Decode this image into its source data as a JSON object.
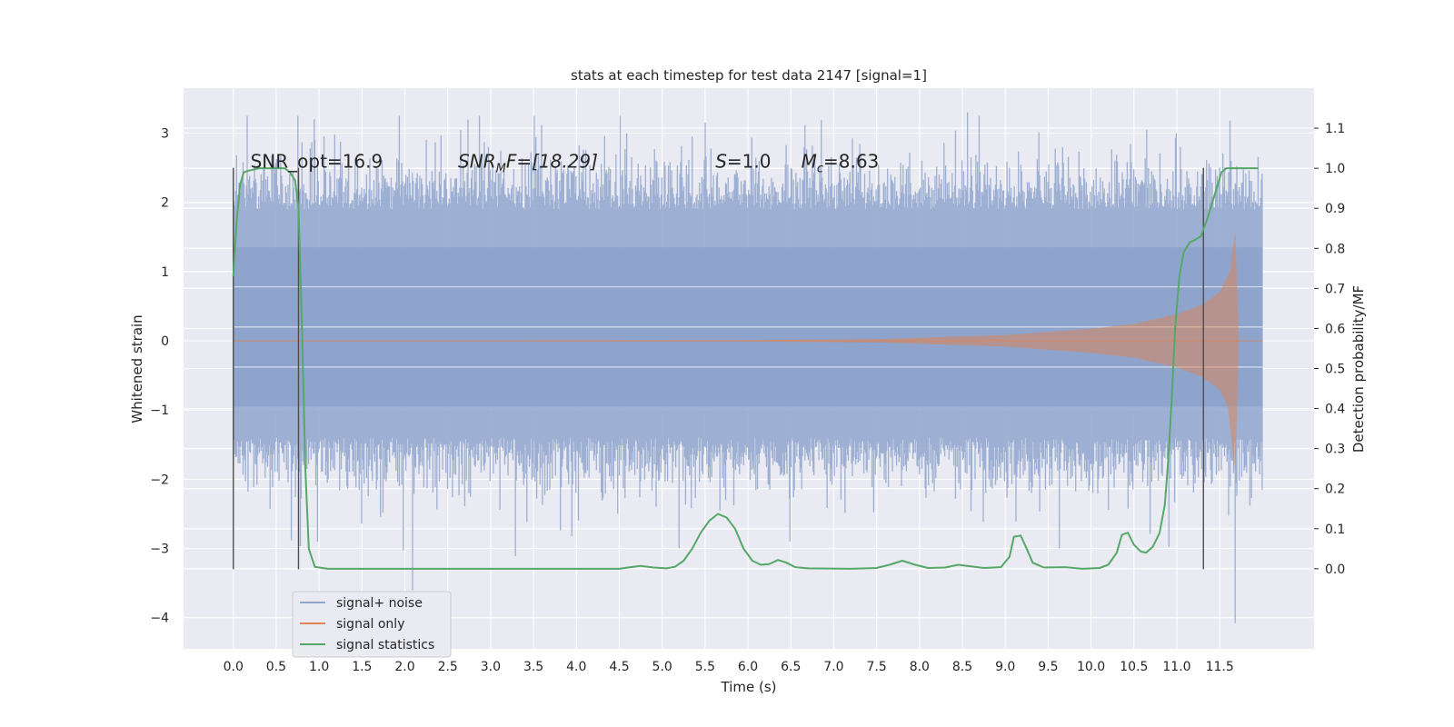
{
  "chart_data": {
    "type": "line",
    "title": "stats at each timestep for test data 2147 [signal=1]",
    "xlabel": "Time (s)",
    "ylabel": "Whitened strain",
    "ylabel_right": "Detection probability/MF",
    "xlim": [
      -0.58,
      12.6
    ],
    "ylim": [
      -4.45,
      3.65
    ],
    "ylim_right": [
      -0.2,
      1.2
    ],
    "x_ticks": [
      0.0,
      0.5,
      1.0,
      1.5,
      2.0,
      2.5,
      3.0,
      3.5,
      4.0,
      4.5,
      5.0,
      5.5,
      6.0,
      6.5,
      7.0,
      7.5,
      8.0,
      8.5,
      9.0,
      9.5,
      10.0,
      10.5,
      11.0,
      11.5
    ],
    "x_tick_labels": [
      "0.0",
      "0.5",
      "1.0",
      "1.5",
      "2.0",
      "2.5",
      "3.0",
      "3.5",
      "4.0",
      "4.5",
      "5.0",
      "5.5",
      "6.0",
      "6.5",
      "7.0",
      "7.5",
      "8.0",
      "8.5",
      "9.0",
      "9.5",
      "10.0",
      "10.5",
      "11.0",
      "11.5"
    ],
    "y_ticks": [
      -4,
      -3,
      -2,
      -1,
      0,
      1,
      2,
      3
    ],
    "y_tick_labels": [
      "−4",
      "−3",
      "−2",
      "−1",
      "0",
      "1",
      "2",
      "3"
    ],
    "y_right_ticks": [
      0.0,
      0.1,
      0.2,
      0.3,
      0.4,
      0.5,
      0.6,
      0.7,
      0.8,
      0.9,
      1.0,
      1.1
    ],
    "y_right_tick_labels": [
      "0.0",
      "0.1",
      "0.2",
      "0.3",
      "0.4",
      "0.5",
      "0.6",
      "0.7",
      "0.8",
      "0.9",
      "1.0",
      "1.1"
    ],
    "grid": true,
    "legend_position": "lower-left",
    "annotations": [
      {
        "id": "snr-opt",
        "text": "SNR_opt=16.9",
        "x": 0.2,
        "y": 2.5
      },
      {
        "id": "snr-mf",
        "text_main": "SNR",
        "text_sub": "M",
        "text_rest": "F=[18.29]",
        "x": 2.62,
        "y": 2.5
      },
      {
        "id": "s-value",
        "text_italic": "S",
        "text_rest": "=1.0",
        "x": 5.62,
        "y": 2.5
      },
      {
        "id": "mc-value",
        "text_italic": "M",
        "text_sub": "c",
        "text_rest": "=8.63",
        "x": 6.62,
        "y": 2.5
      }
    ],
    "vlines": [
      {
        "x": 0.0,
        "y_from": -3.3,
        "y_to": 2.5
      },
      {
        "x": 0.76,
        "y_from": -3.3,
        "y_to": 2.5
      },
      {
        "x": 11.31,
        "y_from": -3.3,
        "y_to": 2.5
      }
    ],
    "series": [
      {
        "name": "signal+ noise",
        "kind": "noise-band",
        "color": "#8fa4cc",
        "x_range": [
          0.0,
          12.0
        ],
        "core_range": [
          -0.95,
          1.35
        ],
        "spike_max": 3.3,
        "spike_min": -4.1
      },
      {
        "name": "signal only",
        "kind": "chirp",
        "color": "#dd8452",
        "x_range": [
          0.0,
          11.72
        ],
        "amplitude_points": [
          [
            0.0,
            0.0
          ],
          [
            6.0,
            0.005
          ],
          [
            7.5,
            0.02
          ],
          [
            9.0,
            0.08
          ],
          [
            10.0,
            0.17
          ],
          [
            10.5,
            0.24
          ],
          [
            11.0,
            0.38
          ],
          [
            11.3,
            0.52
          ],
          [
            11.5,
            0.7
          ],
          [
            11.62,
            1.0
          ],
          [
            11.68,
            1.55
          ],
          [
            11.72,
            0.0
          ]
        ]
      },
      {
        "name": "signal statistics",
        "kind": "line",
        "color": "#55a868",
        "axis": "right",
        "points": [
          [
            0.0,
            0.73
          ],
          [
            0.04,
            0.87
          ],
          [
            0.08,
            0.96
          ],
          [
            0.12,
            0.99
          ],
          [
            0.2,
            0.995
          ],
          [
            0.3,
            1.0
          ],
          [
            0.5,
            1.0
          ],
          [
            0.6,
            1.0
          ],
          [
            0.66,
            0.99
          ],
          [
            0.72,
            0.97
          ],
          [
            0.76,
            0.9
          ],
          [
            0.8,
            0.6
          ],
          [
            0.84,
            0.25
          ],
          [
            0.88,
            0.05
          ],
          [
            0.95,
            0.005
          ],
          [
            1.1,
            0.0
          ],
          [
            2.0,
            0.0
          ],
          [
            3.0,
            0.0
          ],
          [
            4.0,
            0.0
          ],
          [
            4.5,
            0.0
          ],
          [
            4.6,
            0.003
          ],
          [
            4.75,
            0.007
          ],
          [
            4.9,
            0.003
          ],
          [
            5.05,
            0.001
          ],
          [
            5.15,
            0.005
          ],
          [
            5.25,
            0.02
          ],
          [
            5.35,
            0.05
          ],
          [
            5.45,
            0.09
          ],
          [
            5.55,
            0.12
          ],
          [
            5.65,
            0.137
          ],
          [
            5.75,
            0.128
          ],
          [
            5.85,
            0.1
          ],
          [
            5.95,
            0.05
          ],
          [
            6.05,
            0.02
          ],
          [
            6.15,
            0.01
          ],
          [
            6.25,
            0.012
          ],
          [
            6.35,
            0.022
          ],
          [
            6.45,
            0.015
          ],
          [
            6.55,
            0.004
          ],
          [
            6.7,
            0.001
          ],
          [
            7.2,
            0.0
          ],
          [
            7.5,
            0.002
          ],
          [
            7.65,
            0.01
          ],
          [
            7.8,
            0.02
          ],
          [
            7.95,
            0.01
          ],
          [
            8.1,
            0.002
          ],
          [
            8.3,
            0.003
          ],
          [
            8.45,
            0.01
          ],
          [
            8.6,
            0.006
          ],
          [
            8.75,
            0.002
          ],
          [
            8.95,
            0.004
          ],
          [
            9.05,
            0.03
          ],
          [
            9.1,
            0.08
          ],
          [
            9.18,
            0.083
          ],
          [
            9.25,
            0.05
          ],
          [
            9.32,
            0.015
          ],
          [
            9.45,
            0.003
          ],
          [
            9.7,
            0.004
          ],
          [
            9.9,
            0.0
          ],
          [
            10.1,
            0.002
          ],
          [
            10.2,
            0.01
          ],
          [
            10.3,
            0.04
          ],
          [
            10.36,
            0.085
          ],
          [
            10.43,
            0.09
          ],
          [
            10.5,
            0.06
          ],
          [
            10.58,
            0.043
          ],
          [
            10.64,
            0.04
          ],
          [
            10.72,
            0.055
          ],
          [
            10.8,
            0.09
          ],
          [
            10.86,
            0.16
          ],
          [
            10.9,
            0.27
          ],
          [
            10.94,
            0.42
          ],
          [
            10.98,
            0.6
          ],
          [
            11.03,
            0.73
          ],
          [
            11.08,
            0.79
          ],
          [
            11.15,
            0.815
          ],
          [
            11.2,
            0.82
          ],
          [
            11.28,
            0.83
          ],
          [
            11.35,
            0.87
          ],
          [
            11.45,
            0.94
          ],
          [
            11.52,
            0.99
          ],
          [
            11.58,
            1.0
          ],
          [
            11.95,
            1.0
          ]
        ]
      }
    ]
  },
  "legend": {
    "items": [
      {
        "label": "signal+ noise",
        "color": "#8fa4cc"
      },
      {
        "label": "signal only",
        "color": "#dd8452"
      },
      {
        "label": "signal statistics",
        "color": "#55a868"
      }
    ]
  },
  "colors": {
    "axes_background": "#eaeaf2",
    "grid": "#ffffff",
    "vline": "#4d4d4d",
    "text": "#262626"
  }
}
